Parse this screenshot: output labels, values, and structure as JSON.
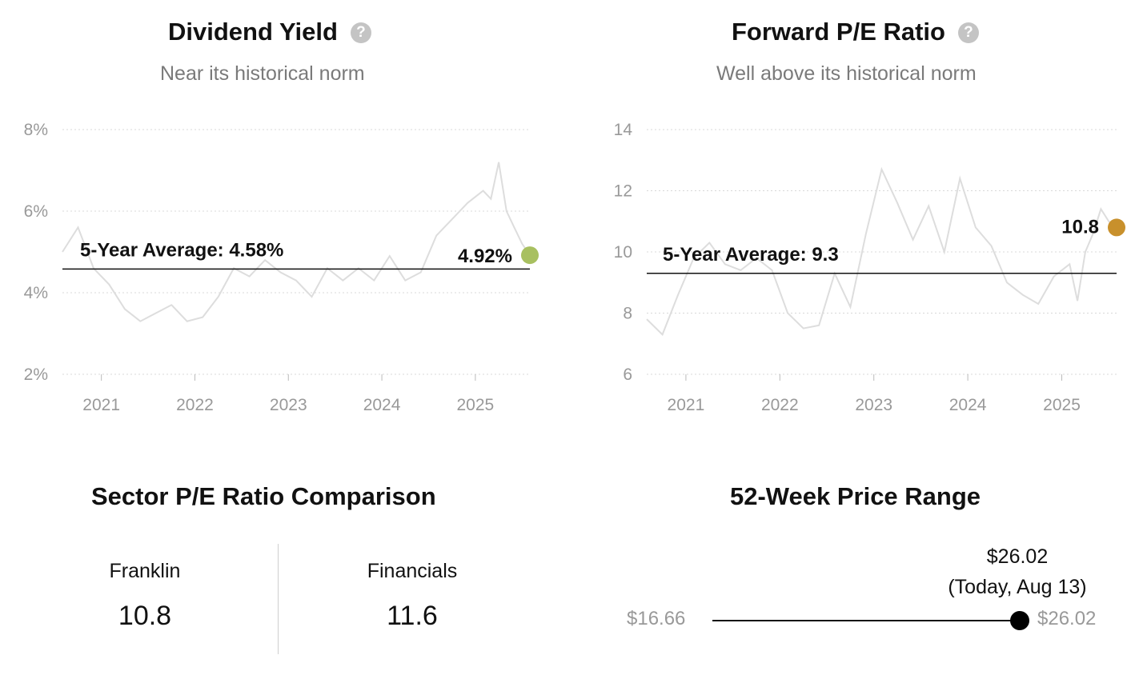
{
  "dividend_panel": {
    "title": "Dividend Yield",
    "help_icon": "question-circle-icon",
    "subtitle": "Near its historical norm"
  },
  "pe_panel": {
    "title": "Forward P/E Ratio",
    "help_icon": "question-circle-icon",
    "subtitle": "Well above its historical norm"
  },
  "sector": {
    "title": "Sector P/E Ratio Comparison",
    "items": [
      {
        "label": "Franklin",
        "value": "10.8"
      },
      {
        "label": "Financials",
        "value": "11.6"
      }
    ]
  },
  "price_range": {
    "title": "52-Week Price Range",
    "low_label": "$16.66",
    "high_label": "$26.02",
    "current_label": "$26.02",
    "current_note": "(Today, Aug 13)",
    "low": 16.66,
    "high": 26.02,
    "current": 26.02
  },
  "chart_data": [
    {
      "type": "line",
      "title": "Dividend Yield",
      "subtitle": "Near its historical norm",
      "x_ticks": [
        "2021",
        "2022",
        "2023",
        "2024",
        "2025"
      ],
      "xlim": [
        "2020-08",
        "2025-08"
      ],
      "y_ticks": [
        "8%",
        "6%",
        "4%",
        "2%"
      ],
      "ylim": [
        2,
        8
      ],
      "grid": true,
      "line_color": "#dddddd",
      "average": {
        "label": "5-Year Average: 4.58%",
        "value": 4.58
      },
      "current": {
        "label": "4.92%",
        "value": 4.92,
        "color": "#a8c060"
      },
      "series": [
        {
          "x": [
            "2020-08",
            "2020-10",
            "2020-12",
            "2021-02",
            "2021-04",
            "2021-06",
            "2021-08",
            "2021-10",
            "2021-12",
            "2022-02",
            "2022-04",
            "2022-06",
            "2022-08",
            "2022-10",
            "2022-12",
            "2023-02",
            "2023-04",
            "2023-06",
            "2023-08",
            "2023-10",
            "2023-12",
            "2024-02",
            "2024-04",
            "2024-06",
            "2024-08",
            "2024-10",
            "2024-12",
            "2025-02",
            "2025-03",
            "2025-04",
            "2025-05",
            "2025-06",
            "2025-07",
            "2025-08"
          ],
          "y": [
            5.0,
            5.6,
            4.6,
            4.2,
            3.6,
            3.3,
            3.5,
            3.7,
            3.3,
            3.4,
            3.9,
            4.6,
            4.4,
            4.8,
            4.5,
            4.3,
            3.9,
            4.6,
            4.3,
            4.6,
            4.3,
            4.9,
            4.3,
            4.5,
            5.4,
            5.8,
            6.2,
            6.5,
            6.3,
            7.2,
            6.0,
            5.6,
            5.2,
            4.92
          ]
        }
      ]
    },
    {
      "type": "line",
      "title": "Forward P/E Ratio",
      "subtitle": "Well above its historical norm",
      "x_ticks": [
        "2021",
        "2022",
        "2023",
        "2024",
        "2025"
      ],
      "xlim": [
        "2020-08",
        "2025-08"
      ],
      "y_ticks": [
        "14",
        "12",
        "10",
        "8",
        "6"
      ],
      "ylim": [
        6,
        14
      ],
      "grid": true,
      "line_color": "#dddddd",
      "average": {
        "label": "5-Year Average: 9.3",
        "value": 9.3
      },
      "current": {
        "label": "10.8",
        "value": 10.8,
        "color": "#c8902c"
      },
      "series": [
        {
          "x": [
            "2020-08",
            "2020-10",
            "2020-12",
            "2021-02",
            "2021-04",
            "2021-06",
            "2021-08",
            "2021-10",
            "2021-12",
            "2022-02",
            "2022-04",
            "2022-06",
            "2022-08",
            "2022-10",
            "2022-12",
            "2023-02",
            "2023-04",
            "2023-06",
            "2023-08",
            "2023-10",
            "2023-12",
            "2024-02",
            "2024-04",
            "2024-06",
            "2024-08",
            "2024-10",
            "2024-12",
            "2025-02",
            "2025-03",
            "2025-04",
            "2025-05",
            "2025-06",
            "2025-07",
            "2025-08"
          ],
          "y": [
            7.8,
            7.3,
            8.6,
            9.8,
            10.3,
            9.6,
            9.4,
            9.8,
            9.4,
            8.0,
            7.5,
            7.6,
            9.3,
            8.2,
            10.6,
            12.7,
            11.6,
            10.4,
            11.5,
            10.0,
            12.4,
            10.8,
            10.2,
            9.0,
            8.6,
            8.3,
            9.2,
            9.6,
            8.4,
            10.0,
            10.6,
            11.4,
            11.0,
            10.8
          ]
        }
      ]
    }
  ]
}
